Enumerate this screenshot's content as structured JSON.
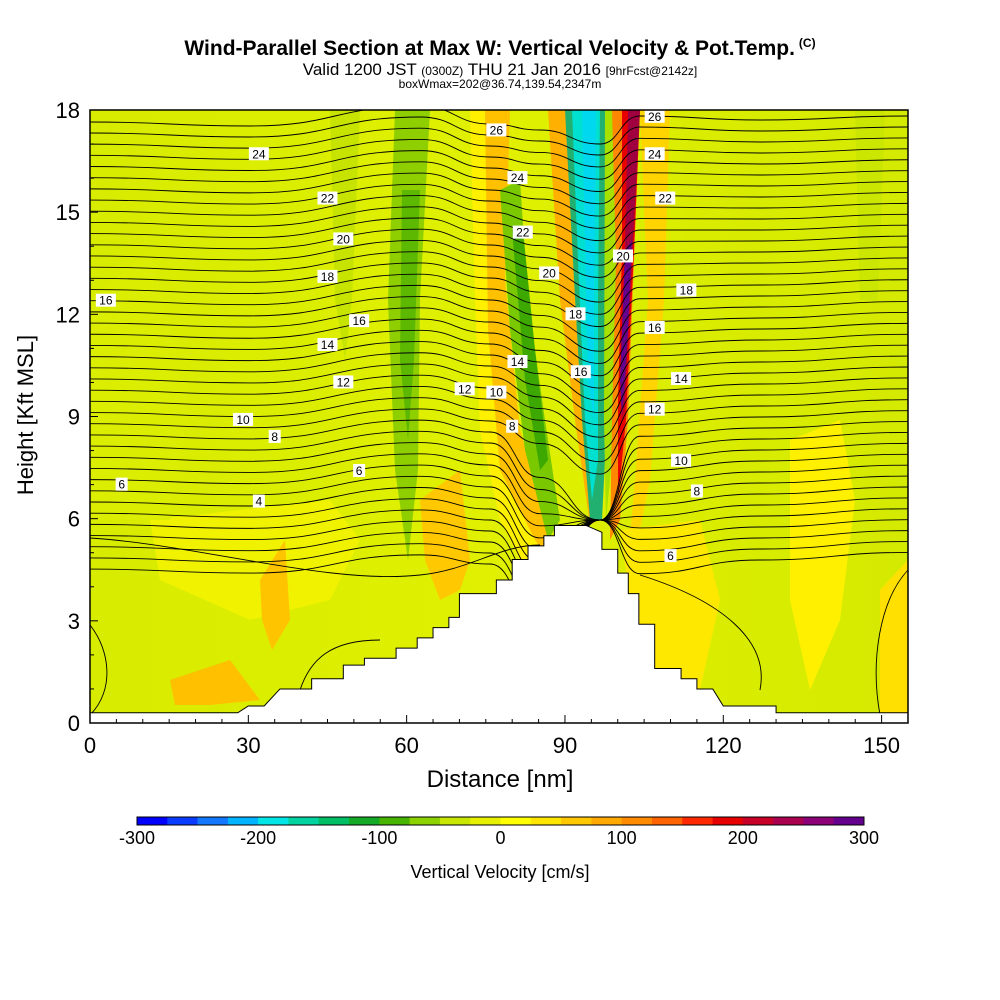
{
  "chart_data": {
    "type": "heatmap",
    "title": "Wind-Parallel Section at Max W: Vertical Velocity & Pot.Temp.",
    "title_mark": "(C)",
    "subtitle_main": "Valid 1200 JST",
    "subtitle_z": "(0300Z)",
    "subtitle_date": "THU 21 Jan 2016",
    "subtitle_fcst": "[9hrFcst@2142z]",
    "box_info": "boxWmax=202@36.74,139.54,2347m",
    "xlabel": "Distance [nm]",
    "ylabel": "Height [Kft MSL]",
    "xlim": [
      0,
      155
    ],
    "ylim": [
      0,
      18
    ],
    "xticks": [
      "0",
      "30",
      "60",
      "90",
      "120",
      "150"
    ],
    "yticks": [
      "0",
      "3",
      "6",
      "9",
      "12",
      "15",
      "18"
    ],
    "colorbar": {
      "label": "Vertical Velocity [cm/s]",
      "ticks": [
        "-300",
        "-200",
        "-100",
        "0",
        "100",
        "200",
        "300"
      ],
      "range": [
        -300,
        300
      ],
      "colors": [
        "#0000ff",
        "#0a3cff",
        "#1478ff",
        "#00b4ff",
        "#00e6e6",
        "#00d2a0",
        "#00be64",
        "#14aa28",
        "#46b400",
        "#8cd200",
        "#c8e600",
        "#e6f000",
        "#ffff00",
        "#ffe600",
        "#ffc800",
        "#ffaa00",
        "#ff8c00",
        "#ff6400",
        "#ff2800",
        "#e60000",
        "#c80028",
        "#aa0050",
        "#8c0078",
        "#64008c"
      ]
    },
    "terrain": [
      [
        0,
        0.3
      ],
      [
        28,
        0.3
      ],
      [
        30,
        0.5
      ],
      [
        33,
        0.5
      ],
      [
        36,
        1.0
      ],
      [
        42,
        1.0
      ],
      [
        42,
        1.3
      ],
      [
        48,
        1.3
      ],
      [
        48,
        1.7
      ],
      [
        52,
        1.7
      ],
      [
        52,
        1.9
      ],
      [
        58,
        1.9
      ],
      [
        58,
        2.2
      ],
      [
        62,
        2.2
      ],
      [
        62,
        2.5
      ],
      [
        65,
        2.5
      ],
      [
        65,
        2.8
      ],
      [
        68,
        2.8
      ],
      [
        68,
        3.1
      ],
      [
        70,
        3.1
      ],
      [
        70,
        3.8
      ],
      [
        77,
        3.8
      ],
      [
        77,
        4.2
      ],
      [
        80,
        4.2
      ],
      [
        80,
        4.8
      ],
      [
        83,
        4.8
      ],
      [
        83,
        5.2
      ],
      [
        86,
        5.2
      ],
      [
        86,
        5.5
      ],
      [
        88,
        5.5
      ],
      [
        88,
        5.8
      ],
      [
        94,
        5.8
      ],
      [
        97,
        5.6
      ],
      [
        97,
        5.1
      ],
      [
        100,
        5.1
      ],
      [
        100,
        4.4
      ],
      [
        102,
        4.4
      ],
      [
        102,
        3.8
      ],
      [
        104,
        3.8
      ],
      [
        104,
        2.9
      ],
      [
        107,
        2.9
      ],
      [
        107,
        1.6
      ],
      [
        112,
        1.6
      ],
      [
        112,
        1.3
      ],
      [
        115,
        1.3
      ],
      [
        115,
        1.0
      ],
      [
        118,
        1.0
      ],
      [
        120,
        0.5
      ],
      [
        130,
        0.5
      ],
      [
        130,
        0.3
      ],
      [
        155,
        0.3
      ]
    ],
    "isentrope_labels": [
      {
        "text": "24",
        "x": 32,
        "y": 16.7
      },
      {
        "text": "22",
        "x": 45,
        "y": 15.4
      },
      {
        "text": "20",
        "x": 48,
        "y": 14.2
      },
      {
        "text": "18",
        "x": 45,
        "y": 13.1
      },
      {
        "text": "16",
        "x": 51,
        "y": 11.8
      },
      {
        "text": "14",
        "x": 45,
        "y": 11.1
      },
      {
        "text": "12",
        "x": 48,
        "y": 10.0
      },
      {
        "text": "10",
        "x": 29,
        "y": 8.9
      },
      {
        "text": "8",
        "x": 35,
        "y": 8.4
      },
      {
        "text": "6",
        "x": 51,
        "y": 7.4
      },
      {
        "text": "6",
        "x": 6,
        "y": 7.0
      },
      {
        "text": "4",
        "x": 32,
        "y": 6.5
      },
      {
        "text": "16",
        "x": 3,
        "y": 12.4
      },
      {
        "text": "26",
        "x": 77,
        "y": 17.4
      },
      {
        "text": "24",
        "x": 81,
        "y": 16.0
      },
      {
        "text": "22",
        "x": 82,
        "y": 14.4
      },
      {
        "text": "20",
        "x": 87,
        "y": 13.2
      },
      {
        "text": "18",
        "x": 92,
        "y": 12.0
      },
      {
        "text": "16",
        "x": 93,
        "y": 10.3
      },
      {
        "text": "14",
        "x": 81,
        "y": 10.6
      },
      {
        "text": "12",
        "x": 71,
        "y": 9.8
      },
      {
        "text": "10",
        "x": 77,
        "y": 9.7
      },
      {
        "text": "8",
        "x": 80,
        "y": 8.7
      },
      {
        "text": "26",
        "x": 107,
        "y": 17.8
      },
      {
        "text": "24",
        "x": 107,
        "y": 16.7
      },
      {
        "text": "22",
        "x": 109,
        "y": 15.4
      },
      {
        "text": "20",
        "x": 101,
        "y": 13.7
      },
      {
        "text": "18",
        "x": 113,
        "y": 12.7
      },
      {
        "text": "16",
        "x": 107,
        "y": 11.6
      },
      {
        "text": "14",
        "x": 112,
        "y": 10.1
      },
      {
        "text": "12",
        "x": 107,
        "y": 9.2
      },
      {
        "text": "10",
        "x": 112,
        "y": 7.7
      },
      {
        "text": "8",
        "x": 115,
        "y": 6.8
      },
      {
        "text": "6",
        "x": 110,
        "y": 4.9
      }
    ]
  }
}
